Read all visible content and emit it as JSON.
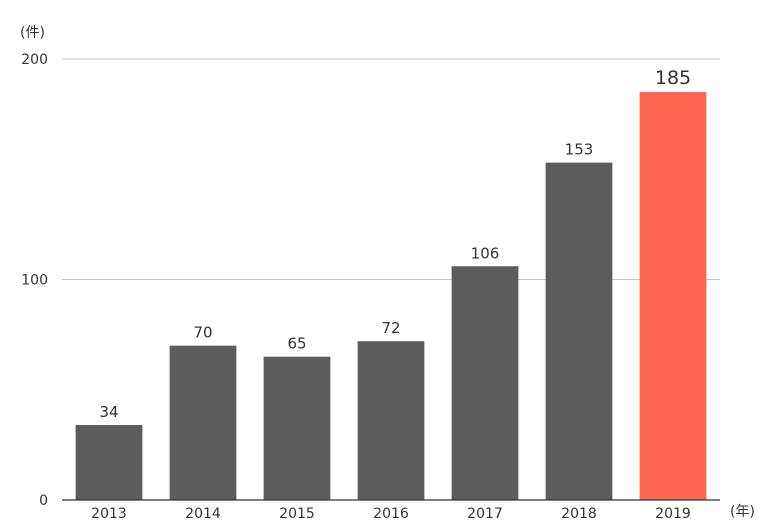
{
  "chart_data": {
    "type": "bar",
    "categories": [
      "2013",
      "2014",
      "2015",
      "2016",
      "2017",
      "2018",
      "2019"
    ],
    "values": [
      34,
      70,
      65,
      72,
      106,
      153,
      185
    ],
    "data_labels": [
      "34",
      "70",
      "65",
      "72",
      "106",
      "153",
      "185"
    ],
    "highlight_index": 6,
    "ylim": [
      0,
      200
    ],
    "yticks": [
      0,
      100,
      200
    ],
    "ytick_labels": [
      "0",
      "100",
      "200"
    ],
    "y_unit": "(件)",
    "x_unit": "(年)",
    "grid": true,
    "colors": {
      "bar": "#5c5c5c",
      "highlight": "#ff644f",
      "highlight_label": "#f0604b",
      "grid": "#c8c8c8"
    }
  }
}
